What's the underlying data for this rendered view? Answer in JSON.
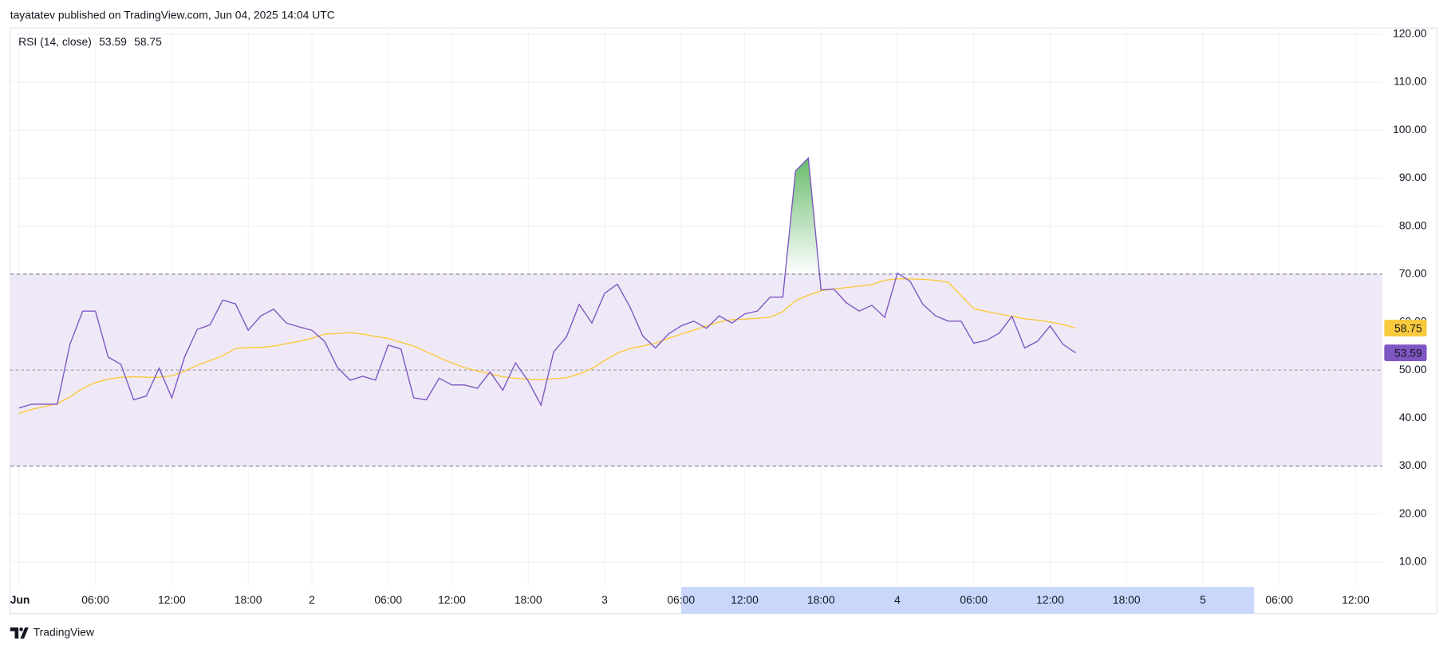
{
  "header": {
    "text": "tayatatev published on TradingView.com, Jun 04, 2025 14:04 UTC"
  },
  "footer": {
    "brand": "TradingView"
  },
  "chart_data": {
    "type": "line",
    "indicator_label": "RSI (14, close)",
    "series": [
      {
        "color": "#7e57c2",
        "values": [
          42.1,
          42.9,
          42.9,
          42.9,
          55.4,
          62.3,
          62.3,
          52.7,
          51.2,
          43.8,
          44.6,
          50.4,
          44.2,
          52.7,
          58.5,
          59.4,
          64.6,
          63.8,
          58.3,
          61.3,
          62.7,
          59.8,
          59.0,
          58.3,
          56.0,
          50.6,
          47.9,
          48.7,
          47.9,
          55.2,
          54.4,
          44.2,
          43.8,
          48.3,
          46.9,
          46.9,
          46.2,
          49.6,
          45.8,
          51.5,
          47.7,
          42.7,
          53.8,
          56.9,
          63.7,
          59.8,
          66.0,
          67.9,
          63.1,
          57.1,
          54.6,
          57.5,
          59.2,
          60.2,
          58.7,
          61.3,
          59.8,
          61.7,
          62.3,
          65.2,
          65.2,
          91.5,
          94.2,
          66.7,
          66.9,
          64.0,
          62.3,
          63.5,
          61.0,
          70.2,
          68.5,
          63.7,
          61.3,
          60.2,
          60.2,
          55.6,
          56.2,
          57.7,
          61.2,
          54.6,
          56.0,
          59.2,
          55.4,
          53.59
        ]
      },
      {
        "color": "#f9c93c",
        "values": [
          41.0,
          41.8,
          42.4,
          43.0,
          44.4,
          46.2,
          47.4,
          48.1,
          48.5,
          48.6,
          48.5,
          48.5,
          48.8,
          49.8,
          51.0,
          52.0,
          53.0,
          54.5,
          54.7,
          54.7,
          55.0,
          55.5,
          56.0,
          56.6,
          57.5,
          57.6,
          57.8,
          57.5,
          57.0,
          56.6,
          55.8,
          55.0,
          53.8,
          52.6,
          51.5,
          50.5,
          49.8,
          49.2,
          48.6,
          48.3,
          48.1,
          48.0,
          48.2,
          48.4,
          49.2,
          50.3,
          52.0,
          53.5,
          54.5,
          55.0,
          55.6,
          56.6,
          57.5,
          58.3,
          59.2,
          60.0,
          60.5,
          60.6,
          60.8,
          61.0,
          62.2,
          64.5,
          65.6,
          66.5,
          66.9,
          67.2,
          67.5,
          67.8,
          68.7,
          69.0,
          69.0,
          68.9,
          68.7,
          68.3,
          65.5,
          62.8,
          62.2,
          61.7,
          61.2,
          60.7,
          60.4,
          60.0,
          59.5,
          58.75
        ]
      }
    ],
    "bands": {
      "upper": 70,
      "middle": 50,
      "lower": 30,
      "fill": "#ede7f6",
      "overbought_fill": "#4caf50"
    },
    "xlim": [
      -0.7,
      107.1
    ],
    "xticks": [
      {
        "value": 0,
        "label": "Jun"
      },
      {
        "value": 6,
        "label": "06:00"
      },
      {
        "value": 12,
        "label": "12:00"
      },
      {
        "value": 18,
        "label": "18:00"
      },
      {
        "value": 23,
        "label": "2"
      },
      {
        "value": 29,
        "label": "06:00"
      },
      {
        "value": 34,
        "label": "12:00"
      },
      {
        "value": 40,
        "label": "18:00"
      },
      {
        "value": 46,
        "label": "3"
      },
      {
        "value": 52,
        "label": "06:00"
      },
      {
        "value": 57,
        "label": "12:00"
      },
      {
        "value": 63,
        "label": "18:00"
      },
      {
        "value": 69,
        "label": "4"
      },
      {
        "value": 75,
        "label": "06:00"
      },
      {
        "value": 81,
        "label": "12:00"
      },
      {
        "value": 87,
        "label": "18:00"
      },
      {
        "value": 93,
        "label": "5"
      },
      {
        "value": 99,
        "label": "06:00"
      },
      {
        "value": 105,
        "label": "12:00"
      }
    ],
    "ylim": [
      5,
      121.3
    ],
    "yticks": [
      {
        "value": 10,
        "label": "10.00"
      },
      {
        "value": 20,
        "label": "20.00"
      },
      {
        "value": 30,
        "label": "30.00"
      },
      {
        "value": 40,
        "label": "40.00"
      },
      {
        "value": 50,
        "label": "50.00"
      },
      {
        "value": 60,
        "label": "60.00"
      },
      {
        "value": 70,
        "label": "70.00"
      },
      {
        "value": 80,
        "label": "80.00"
      },
      {
        "value": 90,
        "label": "90.00"
      },
      {
        "value": 100,
        "label": "100.00"
      },
      {
        "value": 110,
        "label": "110.00"
      },
      {
        "value": 120,
        "label": "120.00"
      }
    ],
    "grid": true
  }
}
